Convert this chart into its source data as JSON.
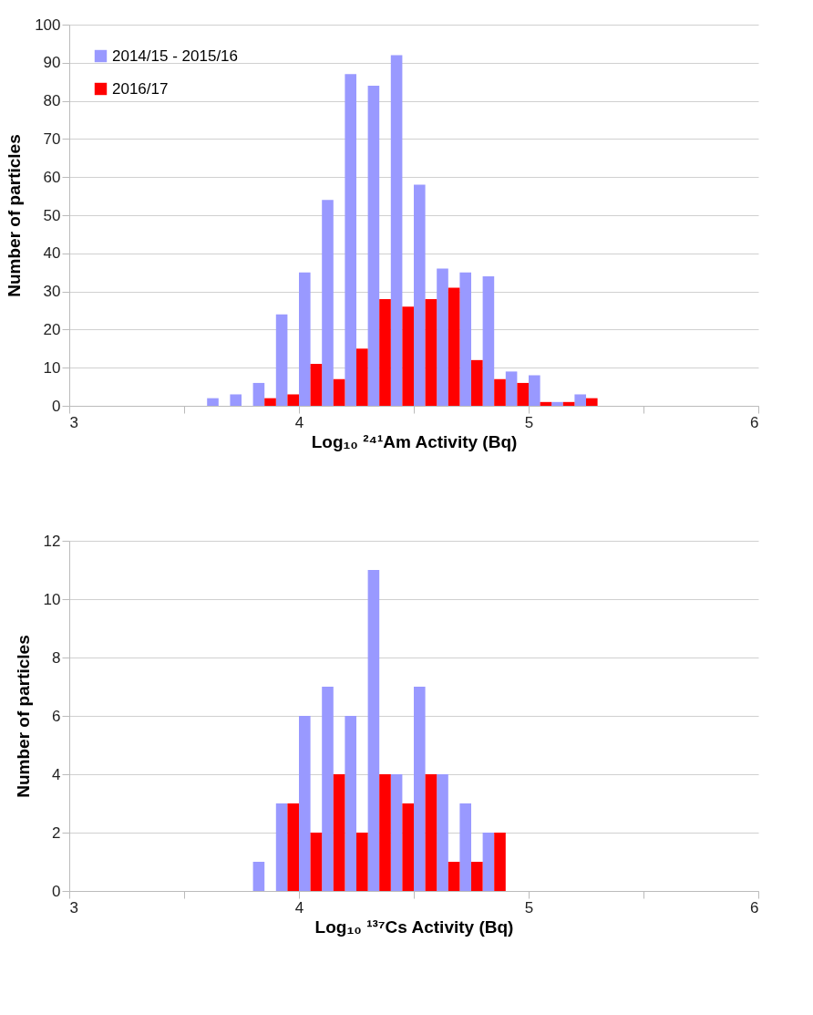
{
  "chart_data": [
    {
      "type": "histogram",
      "xlabel": "Log₁₀ ²⁴¹Am Activity (Bq)",
      "ylabel": "Number of particles",
      "bins": [
        3.6,
        3.7,
        3.8,
        3.9,
        4.0,
        4.1,
        4.2,
        4.3,
        4.4,
        4.5,
        4.6,
        4.7,
        4.8,
        4.9,
        5.0,
        5.1,
        5.2,
        5.3
      ],
      "series": [
        {
          "name": "2014/15 - 2015/16",
          "color": "#9999ff",
          "values": [
            2,
            3,
            6,
            24,
            35,
            54,
            87,
            84,
            92,
            58,
            36,
            35,
            34,
            9,
            8,
            1,
            3
          ]
        },
        {
          "name": "2016/17",
          "color": "#ff0000",
          "values": [
            0,
            0,
            2,
            3,
            11,
            7,
            15,
            28,
            26,
            28,
            31,
            12,
            7,
            6,
            1,
            1,
            2
          ]
        }
      ],
      "xlim": [
        3,
        6
      ],
      "xticks": [
        3,
        {
          "value": 3.5,
          "label": null
        },
        4,
        {
          "value": 4.5,
          "label": null
        },
        5,
        {
          "value": 5.5,
          "label": null
        },
        6
      ],
      "ylim": [
        0,
        100
      ],
      "yticks": [
        0,
        10,
        20,
        30,
        40,
        50,
        60,
        70,
        80,
        90,
        100
      ],
      "grid": "y",
      "legend": "top left"
    },
    {
      "type": "histogram",
      "xlabel": "Log₁₀ ¹³⁷Cs Activity (Bq)",
      "ylabel": "Number of particles",
      "bins": [
        3.8,
        3.9,
        4.0,
        4.1,
        4.2,
        4.3,
        4.4,
        4.5,
        4.6,
        4.7,
        4.8,
        4.9
      ],
      "series": [
        {
          "name": "2014/15 - 2015/16",
          "color": "#9999ff",
          "values": [
            1,
            3,
            6,
            7,
            6,
            11,
            4,
            7,
            4,
            3,
            2
          ]
        },
        {
          "name": "2016/17",
          "color": "#ff0000",
          "values": [
            0,
            3,
            2,
            4,
            2,
            4,
            3,
            4,
            1,
            1,
            2
          ]
        }
      ],
      "xlim": [
        3,
        6
      ],
      "xticks": [
        3,
        {
          "value": 3.5,
          "label": null
        },
        4,
        {
          "value": 4.5,
          "label": null
        },
        5,
        {
          "value": 5.5,
          "label": null
        },
        6
      ],
      "ylim": [
        0,
        12
      ],
      "yticks": [
        0,
        2,
        4,
        6,
        8,
        10,
        12
      ],
      "grid": "y",
      "legend": "top left"
    }
  ]
}
